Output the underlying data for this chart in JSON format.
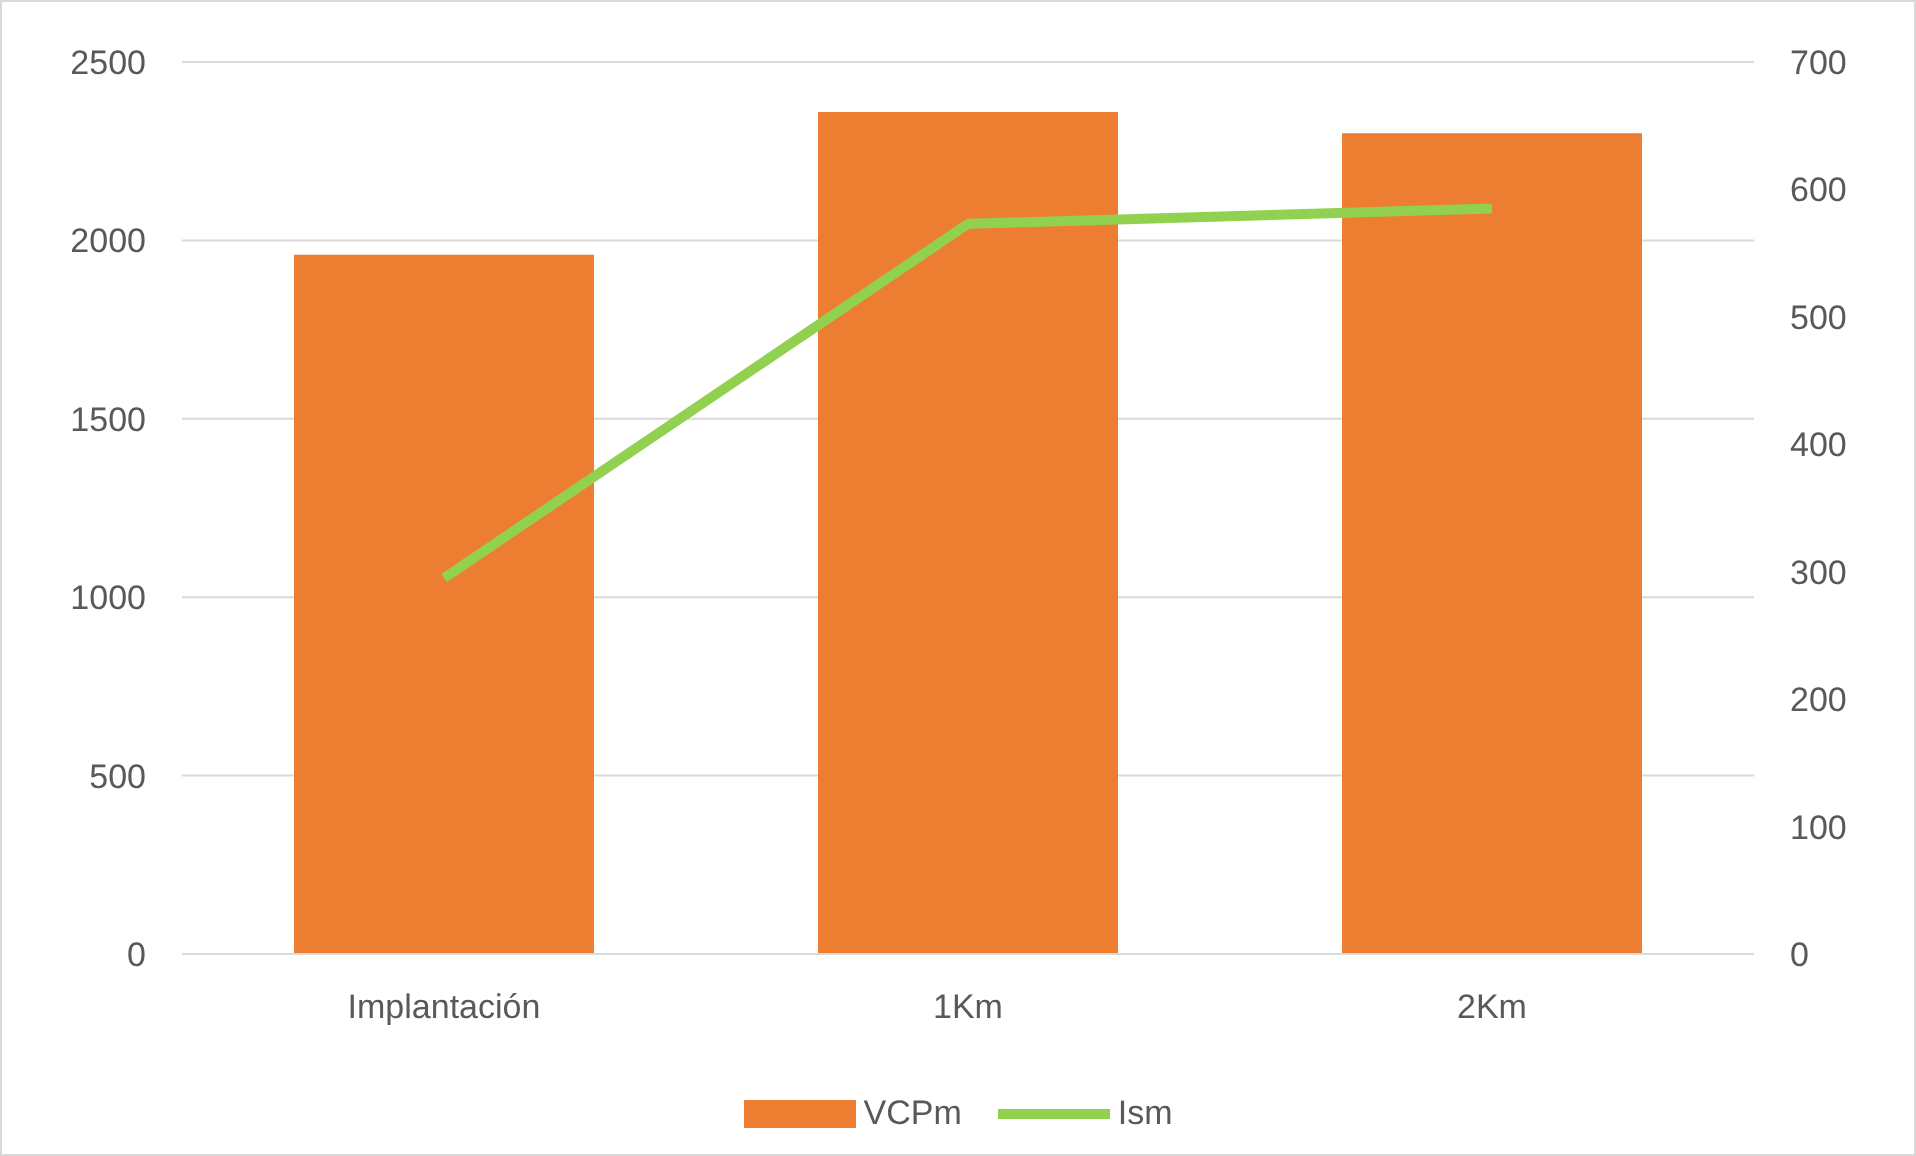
{
  "chart_data": {
    "type": "bar",
    "categories": [
      "Implantación",
      "1Km",
      "2Km"
    ],
    "series": [
      {
        "name": "VCPm",
        "color": "#ed7d31",
        "values": [
          1960,
          2360,
          2300
        ]
      },
      {
        "name": "Ism",
        "type": "line",
        "axis": "y2",
        "color": "#92d050",
        "values": [
          295,
          573,
          585
        ]
      }
    ],
    "ylim": [
      0,
      2500
    ],
    "yticks": [
      0,
      500,
      1000,
      1500,
      2000,
      2500
    ],
    "y2lim": [
      0,
      700
    ],
    "y2ticks": [
      0,
      100,
      200,
      300,
      400,
      500,
      600,
      700
    ],
    "grid": "y",
    "legend": "bottom",
    "marker": "none"
  }
}
